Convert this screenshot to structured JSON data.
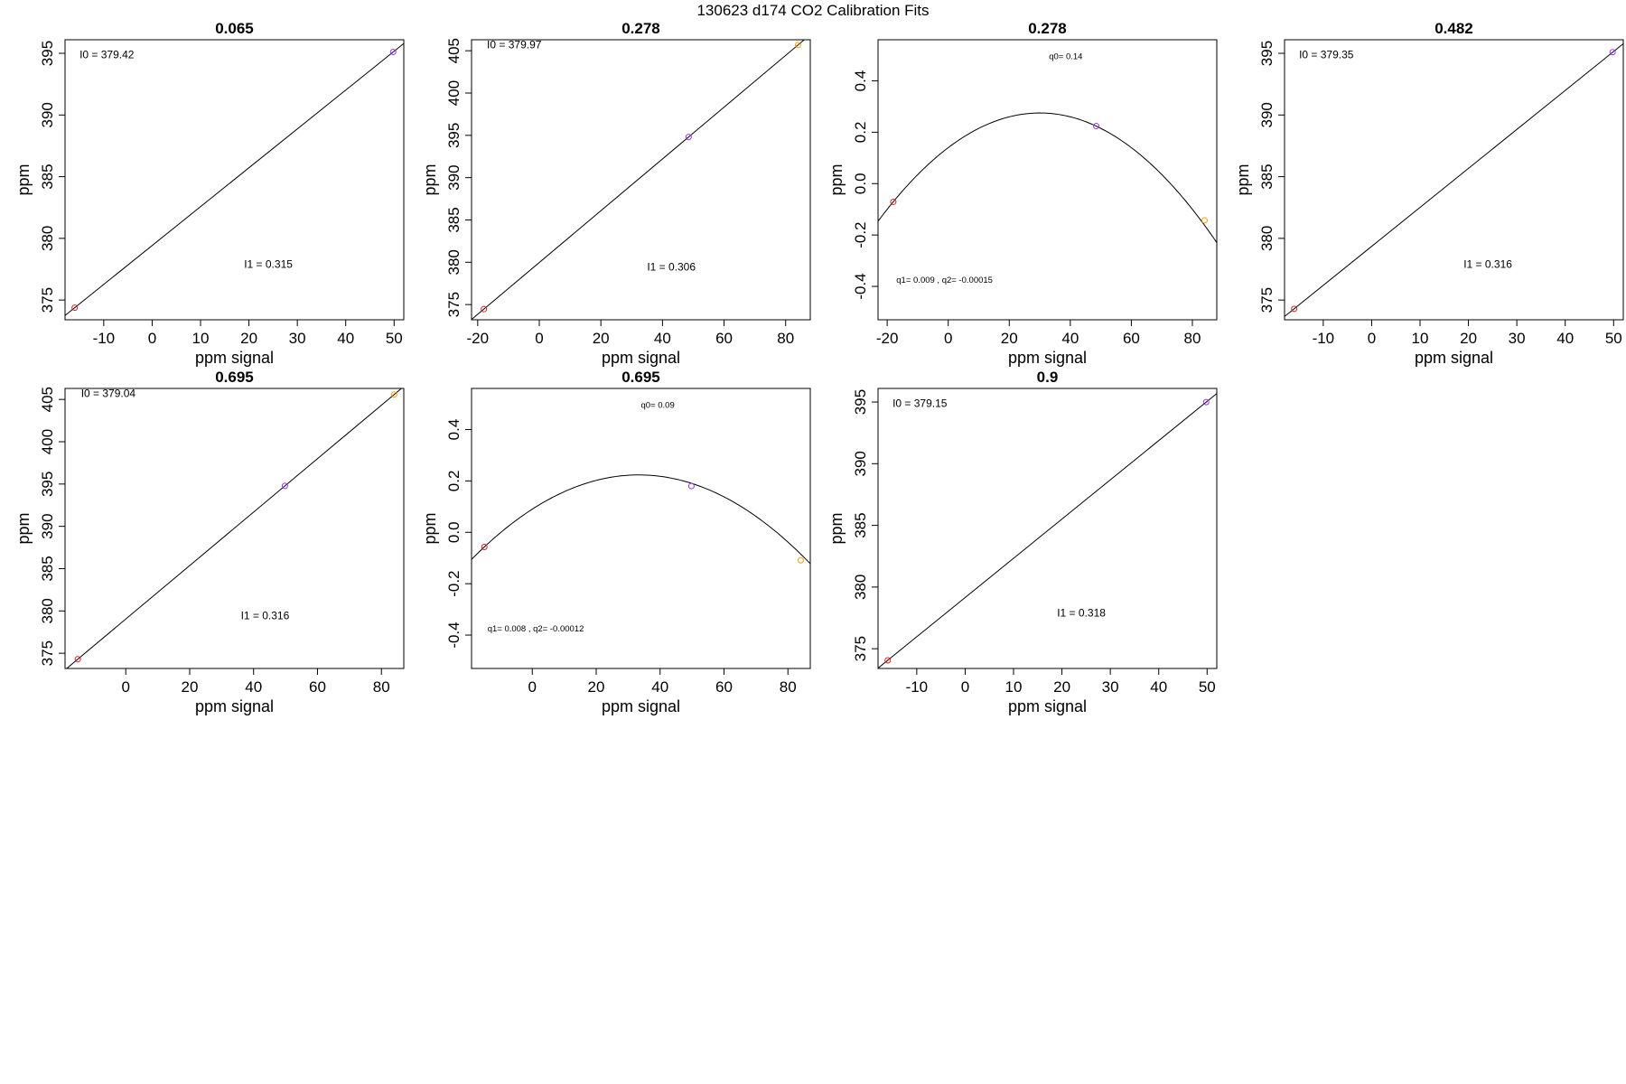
{
  "figure_title": "130623   d174   CO2 Calibration Fits",
  "chart_data": [
    {
      "type": "scatter",
      "fit": "linear",
      "title": "0.065",
      "xlabel": "ppm signal",
      "ylabel": "ppm",
      "xlim": [
        -18,
        52
      ],
      "ylim": [
        373.4,
        396.1
      ],
      "xticks": [
        -10,
        0,
        10,
        20,
        30,
        40,
        50
      ],
      "yticks": [
        375,
        380,
        385,
        390,
        395
      ],
      "line": {
        "intercept": 379.42,
        "slope": 0.315
      },
      "points": [
        {
          "x": -16,
          "y": 374.38,
          "color": "#e0201f"
        },
        {
          "x": 49.8,
          "y": 395.11,
          "color": "#9b30ff"
        }
      ],
      "annotations": [
        {
          "text": "I0 =  379.42",
          "x": -15,
          "y": 394.6
        },
        {
          "text": "I1 =  0.315",
          "x": 19,
          "y": 377.6
        }
      ]
    },
    {
      "type": "scatter",
      "fit": "linear",
      "title": "0.278",
      "xlabel": "ppm signal",
      "ylabel": "ppm",
      "xlim": [
        -22,
        88
      ],
      "ylim": [
        373.2,
        406.3
      ],
      "xticks": [
        -20,
        0,
        20,
        40,
        60,
        80
      ],
      "yticks": [
        375,
        380,
        385,
        390,
        395,
        400,
        405
      ],
      "line": {
        "intercept": 379.97,
        "slope": 0.306
      },
      "points": [
        {
          "x": -18,
          "y": 374.46,
          "color": "#e0201f"
        },
        {
          "x": 48.5,
          "y": 394.81,
          "color": "#9b30ff"
        },
        {
          "x": 84,
          "y": 405.67,
          "color": "#ff9900"
        }
      ],
      "annotations": [
        {
          "text": "I0 =  379.97",
          "x": -17,
          "y": 405.3
        },
        {
          "text": "I1 =  0.306",
          "x": 35,
          "y": 379.0
        }
      ]
    },
    {
      "type": "scatter",
      "fit": "quadratic",
      "title": "0.278",
      "xlabel": "ppm signal",
      "ylabel": "ppm",
      "xlim": [
        -23,
        88
      ],
      "ylim": [
        -0.53,
        0.56
      ],
      "xticks": [
        -20,
        0,
        20,
        40,
        60,
        80
      ],
      "yticks": [
        -0.4,
        -0.2,
        0.0,
        0.2,
        0.4
      ],
      "yticklabels": [
        "-0.4",
        "-0.2",
        "0.0",
        "0.2",
        "0.4"
      ],
      "curve": {
        "q0": 0.14,
        "q1": 0.009,
        "q2": -0.00015
      },
      "points": [
        {
          "x": -18,
          "y": -0.071,
          "color": "#e0201f"
        },
        {
          "x": 48.5,
          "y": 0.224,
          "color": "#9b30ff"
        },
        {
          "x": 84,
          "y": -0.143,
          "color": "#ff9900"
        }
      ],
      "annotations": [
        {
          "text": "q0= 0.14",
          "x": 33,
          "y": 0.485,
          "small": true
        },
        {
          "text": "q1= 0.009 , q2= -0.00015",
          "x": -17,
          "y": -0.385,
          "small": true
        }
      ]
    },
    {
      "type": "scatter",
      "fit": "linear",
      "title": "0.482",
      "xlabel": "ppm signal",
      "ylabel": "ppm",
      "xlim": [
        -18,
        52
      ],
      "ylim": [
        373.4,
        396.1
      ],
      "xticks": [
        -10,
        0,
        10,
        20,
        30,
        40,
        50
      ],
      "yticks": [
        375,
        380,
        385,
        390,
        395
      ],
      "line": {
        "intercept": 379.35,
        "slope": 0.316
      },
      "points": [
        {
          "x": -16,
          "y": 374.29,
          "color": "#e0201f"
        },
        {
          "x": 49.8,
          "y": 395.09,
          "color": "#9b30ff"
        }
      ],
      "annotations": [
        {
          "text": "I0 =  379.35",
          "x": -15,
          "y": 394.6
        },
        {
          "text": "I1 =  0.316",
          "x": 19,
          "y": 377.6
        }
      ]
    },
    {
      "type": "scatter",
      "fit": "linear",
      "title": "0.695",
      "xlabel": "ppm signal",
      "ylabel": "ppm",
      "xlim": [
        -19,
        87
      ],
      "ylim": [
        373.2,
        406.3
      ],
      "xticks": [
        0,
        20,
        40,
        60,
        80
      ],
      "yticks": [
        375,
        380,
        385,
        390,
        395,
        400,
        405
      ],
      "line": {
        "intercept": 379.04,
        "slope": 0.316
      },
      "points": [
        {
          "x": -15,
          "y": 374.3,
          "color": "#e0201f"
        },
        {
          "x": 49.8,
          "y": 394.78,
          "color": "#9b30ff"
        },
        {
          "x": 84,
          "y": 405.58,
          "color": "#ff9900"
        }
      ],
      "annotations": [
        {
          "text": "I0 =  379.04",
          "x": -14,
          "y": 405.3
        },
        {
          "text": "I1 =  0.316",
          "x": 36,
          "y": 379.0
        }
      ]
    },
    {
      "type": "scatter",
      "fit": "quadratic",
      "title": "0.695",
      "xlabel": "ppm signal",
      "ylabel": "ppm",
      "xlim": [
        -19,
        87
      ],
      "ylim": [
        -0.53,
        0.56
      ],
      "xticks": [
        0,
        20,
        40,
        60,
        80
      ],
      "yticks": [
        -0.4,
        -0.2,
        0.0,
        0.2,
        0.4
      ],
      "yticklabels": [
        "-0.4",
        "-0.2",
        "0.0",
        "0.2",
        "0.4"
      ],
      "curve": {
        "q0": 0.09,
        "q1": 0.008,
        "q2": -0.00012
      },
      "points": [
        {
          "x": -15,
          "y": -0.057,
          "color": "#e0201f"
        },
        {
          "x": 49.8,
          "y": 0.18,
          "color": "#9b30ff"
        },
        {
          "x": 84,
          "y": -0.109,
          "color": "#ff9900"
        }
      ],
      "annotations": [
        {
          "text": "q0= 0.09",
          "x": 34,
          "y": 0.485,
          "small": true
        },
        {
          "text": "q1= 0.008 , q2= -0.00012",
          "x": -14,
          "y": -0.385,
          "small": true
        }
      ]
    },
    {
      "type": "scatter",
      "fit": "linear",
      "title": "0.9",
      "xlabel": "ppm signal",
      "ylabel": "ppm",
      "xlim": [
        -18,
        52
      ],
      "ylim": [
        373.4,
        396.1
      ],
      "xticks": [
        -10,
        0,
        10,
        20,
        30,
        40,
        50
      ],
      "yticks": [
        375,
        380,
        385,
        390,
        395
      ],
      "line": {
        "intercept": 379.15,
        "slope": 0.318
      },
      "points": [
        {
          "x": -16,
          "y": 374.06,
          "color": "#e0201f"
        },
        {
          "x": 49.8,
          "y": 394.99,
          "color": "#9b30ff"
        }
      ],
      "annotations": [
        {
          "text": "I0 =  379.15",
          "x": -15,
          "y": 394.6
        },
        {
          "text": "I1 =  0.318",
          "x": 19,
          "y": 377.6
        }
      ]
    }
  ]
}
